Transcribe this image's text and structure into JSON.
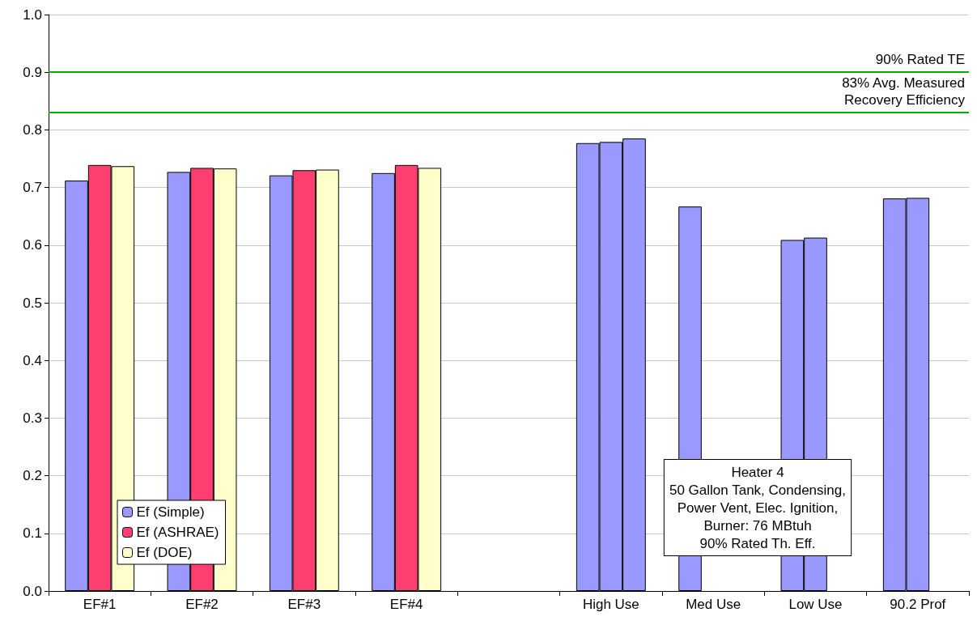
{
  "chart_data": {
    "type": "bar",
    "categories": [
      "EF#1",
      "EF#2",
      "EF#3",
      "EF#4",
      null,
      "High Use",
      "Med Use",
      "Low Use",
      "90.2 Prof"
    ],
    "series": [
      {
        "name": "Ef (Simple)",
        "color": "#9999ff",
        "values": [
          0.712,
          0.727,
          0.721,
          0.725,
          null,
          0.777,
          0.667,
          0.609,
          0.681
        ]
      },
      {
        "name": "Ef (ASHRAE)",
        "color": "#ff3f6f",
        "colors": [
          "#ff3f6f",
          "#ff3f6f",
          "#ff3f6f",
          "#ff3f6f",
          null,
          "#9999ff",
          null,
          "#9999ff",
          "#9999ff"
        ],
        "values": [
          0.739,
          0.734,
          0.73,
          0.739,
          null,
          0.779,
          null,
          0.613,
          0.682
        ]
      },
      {
        "name": "Ef (DOE)",
        "color": "#ffffcc",
        "colors": [
          "#ffffcc",
          "#ffffcc",
          "#ffffcc",
          "#ffffcc",
          null,
          "#9999ff",
          null,
          null,
          null
        ],
        "values": [
          0.737,
          0.733,
          0.731,
          0.734,
          null,
          0.785,
          null,
          null,
          null
        ]
      }
    ],
    "ylim": [
      0,
      1
    ],
    "yticks": [
      {
        "value": 0,
        "label": "0.0"
      },
      0.1,
      0.2,
      0.3,
      0.4,
      0.5,
      0.6,
      0.7,
      0.8,
      0.9,
      {
        "value": 1,
        "label": "1.0"
      }
    ],
    "grid": "y",
    "legend": "bottom left",
    "ref_lines": [
      {
        "axis": "y",
        "value": 0.9,
        "label": "90% Rated TE",
        "color": "#00b000"
      },
      {
        "axis": "y",
        "value": 0.828,
        "label": "83% Avg. Measured\nRecovery Efficiency",
        "color": "#00b000"
      }
    ],
    "annotations": [
      "Heater 4\n50 Gallon Tank, Condensing,\nPower Vent, Elec. Ignition,\nBurner: 76 MBtuh\n90% Rated Th. Eff."
    ]
  }
}
